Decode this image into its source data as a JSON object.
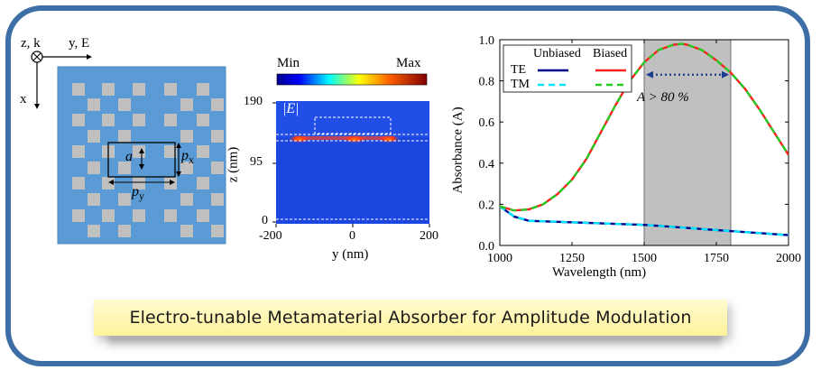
{
  "caption": "Electro-tunable Metamaterial Absorber for Amplitude Modulation",
  "unit_cell": {
    "axis_z_k": "z, k",
    "axis_y_E": "y, E",
    "axis_x": "x",
    "label_a": "a",
    "label_px": "p",
    "label_px_sub": "x",
    "label_py": "p",
    "label_py_sub": "y",
    "colors": {
      "substrate": "#5b9bd5",
      "square": "#c0c0c0"
    }
  },
  "field_map": {
    "colorbar_min": "Min",
    "colorbar_max": "Max",
    "field_label": "|E|",
    "xlabel": "y (nm)",
    "ylabel": "z (nm)",
    "xticks": [
      "-200",
      "0",
      "200"
    ],
    "yticks": [
      "190",
      "95",
      "0"
    ]
  },
  "chart_data": {
    "type": "line",
    "xlabel": "Wavelength (nm)",
    "ylabel": "Absorbance (A)",
    "xlim": [
      1000,
      2000
    ],
    "ylim": [
      0,
      1.0
    ],
    "xticks": [
      "1000",
      "1250",
      "1500",
      "1750",
      "2000"
    ],
    "yticks": [
      "0.0",
      "0.2",
      "0.4",
      "0.6",
      "0.8",
      "1.0"
    ],
    "shaded_region": [
      1500,
      1800
    ],
    "annotation": "A > 80 %",
    "legend": {
      "headers": [
        "Unbiased",
        "Biased"
      ],
      "rows": [
        "TE",
        "TM"
      ],
      "placement": "top-left"
    },
    "series": [
      {
        "name": "TE",
        "group": "Unbiased",
        "color": "#00008b",
        "style": "solid",
        "x": [
          1000,
          1050,
          1100,
          1200,
          1300,
          1400,
          1500,
          1600,
          1700,
          1800,
          1900,
          2000
        ],
        "y": [
          0.19,
          0.14,
          0.12,
          0.115,
          0.11,
          0.105,
          0.1,
          0.09,
          0.08,
          0.07,
          0.06,
          0.05
        ]
      },
      {
        "name": "TM",
        "group": "Unbiased",
        "color": "#00e5ff",
        "style": "dashed",
        "x": [
          1000,
          1050,
          1100,
          1200,
          1300,
          1400,
          1500,
          1600,
          1700,
          1800,
          1900,
          2000
        ],
        "y": [
          0.19,
          0.14,
          0.12,
          0.115,
          0.11,
          0.105,
          0.1,
          0.09,
          0.08,
          0.07,
          0.06,
          0.05
        ]
      },
      {
        "name": "TE",
        "group": "Biased",
        "color": "#ff2020",
        "style": "solid",
        "x": [
          1000,
          1050,
          1100,
          1150,
          1200,
          1250,
          1300,
          1350,
          1400,
          1450,
          1500,
          1550,
          1600,
          1630,
          1650,
          1700,
          1750,
          1800,
          1850,
          1900,
          1950,
          2000
        ],
        "y": [
          0.19,
          0.17,
          0.175,
          0.2,
          0.25,
          0.32,
          0.42,
          0.55,
          0.68,
          0.8,
          0.89,
          0.95,
          0.975,
          0.98,
          0.975,
          0.95,
          0.9,
          0.84,
          0.76,
          0.66,
          0.55,
          0.44
        ]
      },
      {
        "name": "TM",
        "group": "Biased",
        "color": "#22cc22",
        "style": "dashed",
        "x": [
          1000,
          1050,
          1100,
          1150,
          1200,
          1250,
          1300,
          1350,
          1400,
          1450,
          1500,
          1550,
          1600,
          1630,
          1650,
          1700,
          1750,
          1800,
          1850,
          1900,
          1950,
          2000
        ],
        "y": [
          0.19,
          0.17,
          0.175,
          0.2,
          0.25,
          0.32,
          0.42,
          0.55,
          0.68,
          0.8,
          0.89,
          0.95,
          0.975,
          0.98,
          0.975,
          0.95,
          0.9,
          0.84,
          0.76,
          0.66,
          0.55,
          0.44
        ]
      }
    ]
  }
}
